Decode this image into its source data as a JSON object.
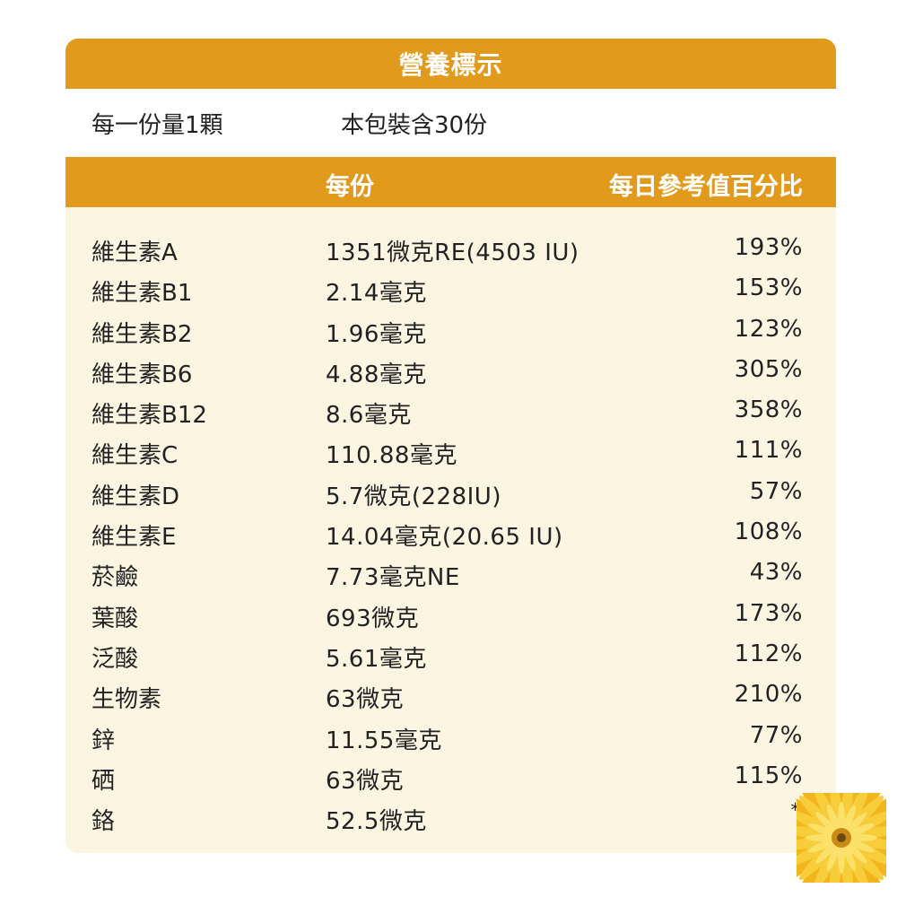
{
  "label": {
    "title": "營養標示",
    "serving_size": "每一份量1顆",
    "servings_per_package": "本包裝含30份",
    "column_per_serving": "每份",
    "column_daily_value": "每日參考值百分比"
  },
  "nutrients": [
    {
      "name": "維生素A",
      "amount": "1351微克RE(4503 IU)",
      "dv": "193%"
    },
    {
      "name": "維生素B1",
      "amount": "2.14毫克",
      "dv": "153%"
    },
    {
      "name": "維生素B2",
      "amount": "1.96毫克",
      "dv": "123%"
    },
    {
      "name": "維生素B6",
      "amount": "4.88毫克",
      "dv": "305%"
    },
    {
      "name": "維生素B12",
      "amount": "8.6毫克",
      "dv": "358%"
    },
    {
      "name": "維生素C",
      "amount": "110.88毫克",
      "dv": "111%"
    },
    {
      "name": "維生素D",
      "amount": "5.7微克(228IU)",
      "dv": "57%"
    },
    {
      "name": "維生素E",
      "amount": "14.04毫克(20.65 IU)",
      "dv": "108%"
    },
    {
      "name": "菸鹼",
      "amount": "7.73毫克NE",
      "dv": "43%"
    },
    {
      "name": "葉酸",
      "amount": "693微克",
      "dv": "173%"
    },
    {
      "name": "泛酸",
      "amount": "5.61毫克",
      "dv": "112%"
    },
    {
      "name": "生物素",
      "amount": "63微克",
      "dv": "210%"
    },
    {
      "name": "鋅",
      "amount": "11.55毫克",
      "dv": "77%"
    },
    {
      "name": "硒",
      "amount": "63微克",
      "dv": "115%"
    },
    {
      "name": "鉻",
      "amount": "52.5微克",
      "dv": "*"
    }
  ],
  "colors": {
    "header_bg": "#e29a1c",
    "panel_bg": "#fcf5e2",
    "header_text": "#ffffff",
    "body_text": "#222222"
  },
  "decoration_icon": "calendula-flower-icon"
}
